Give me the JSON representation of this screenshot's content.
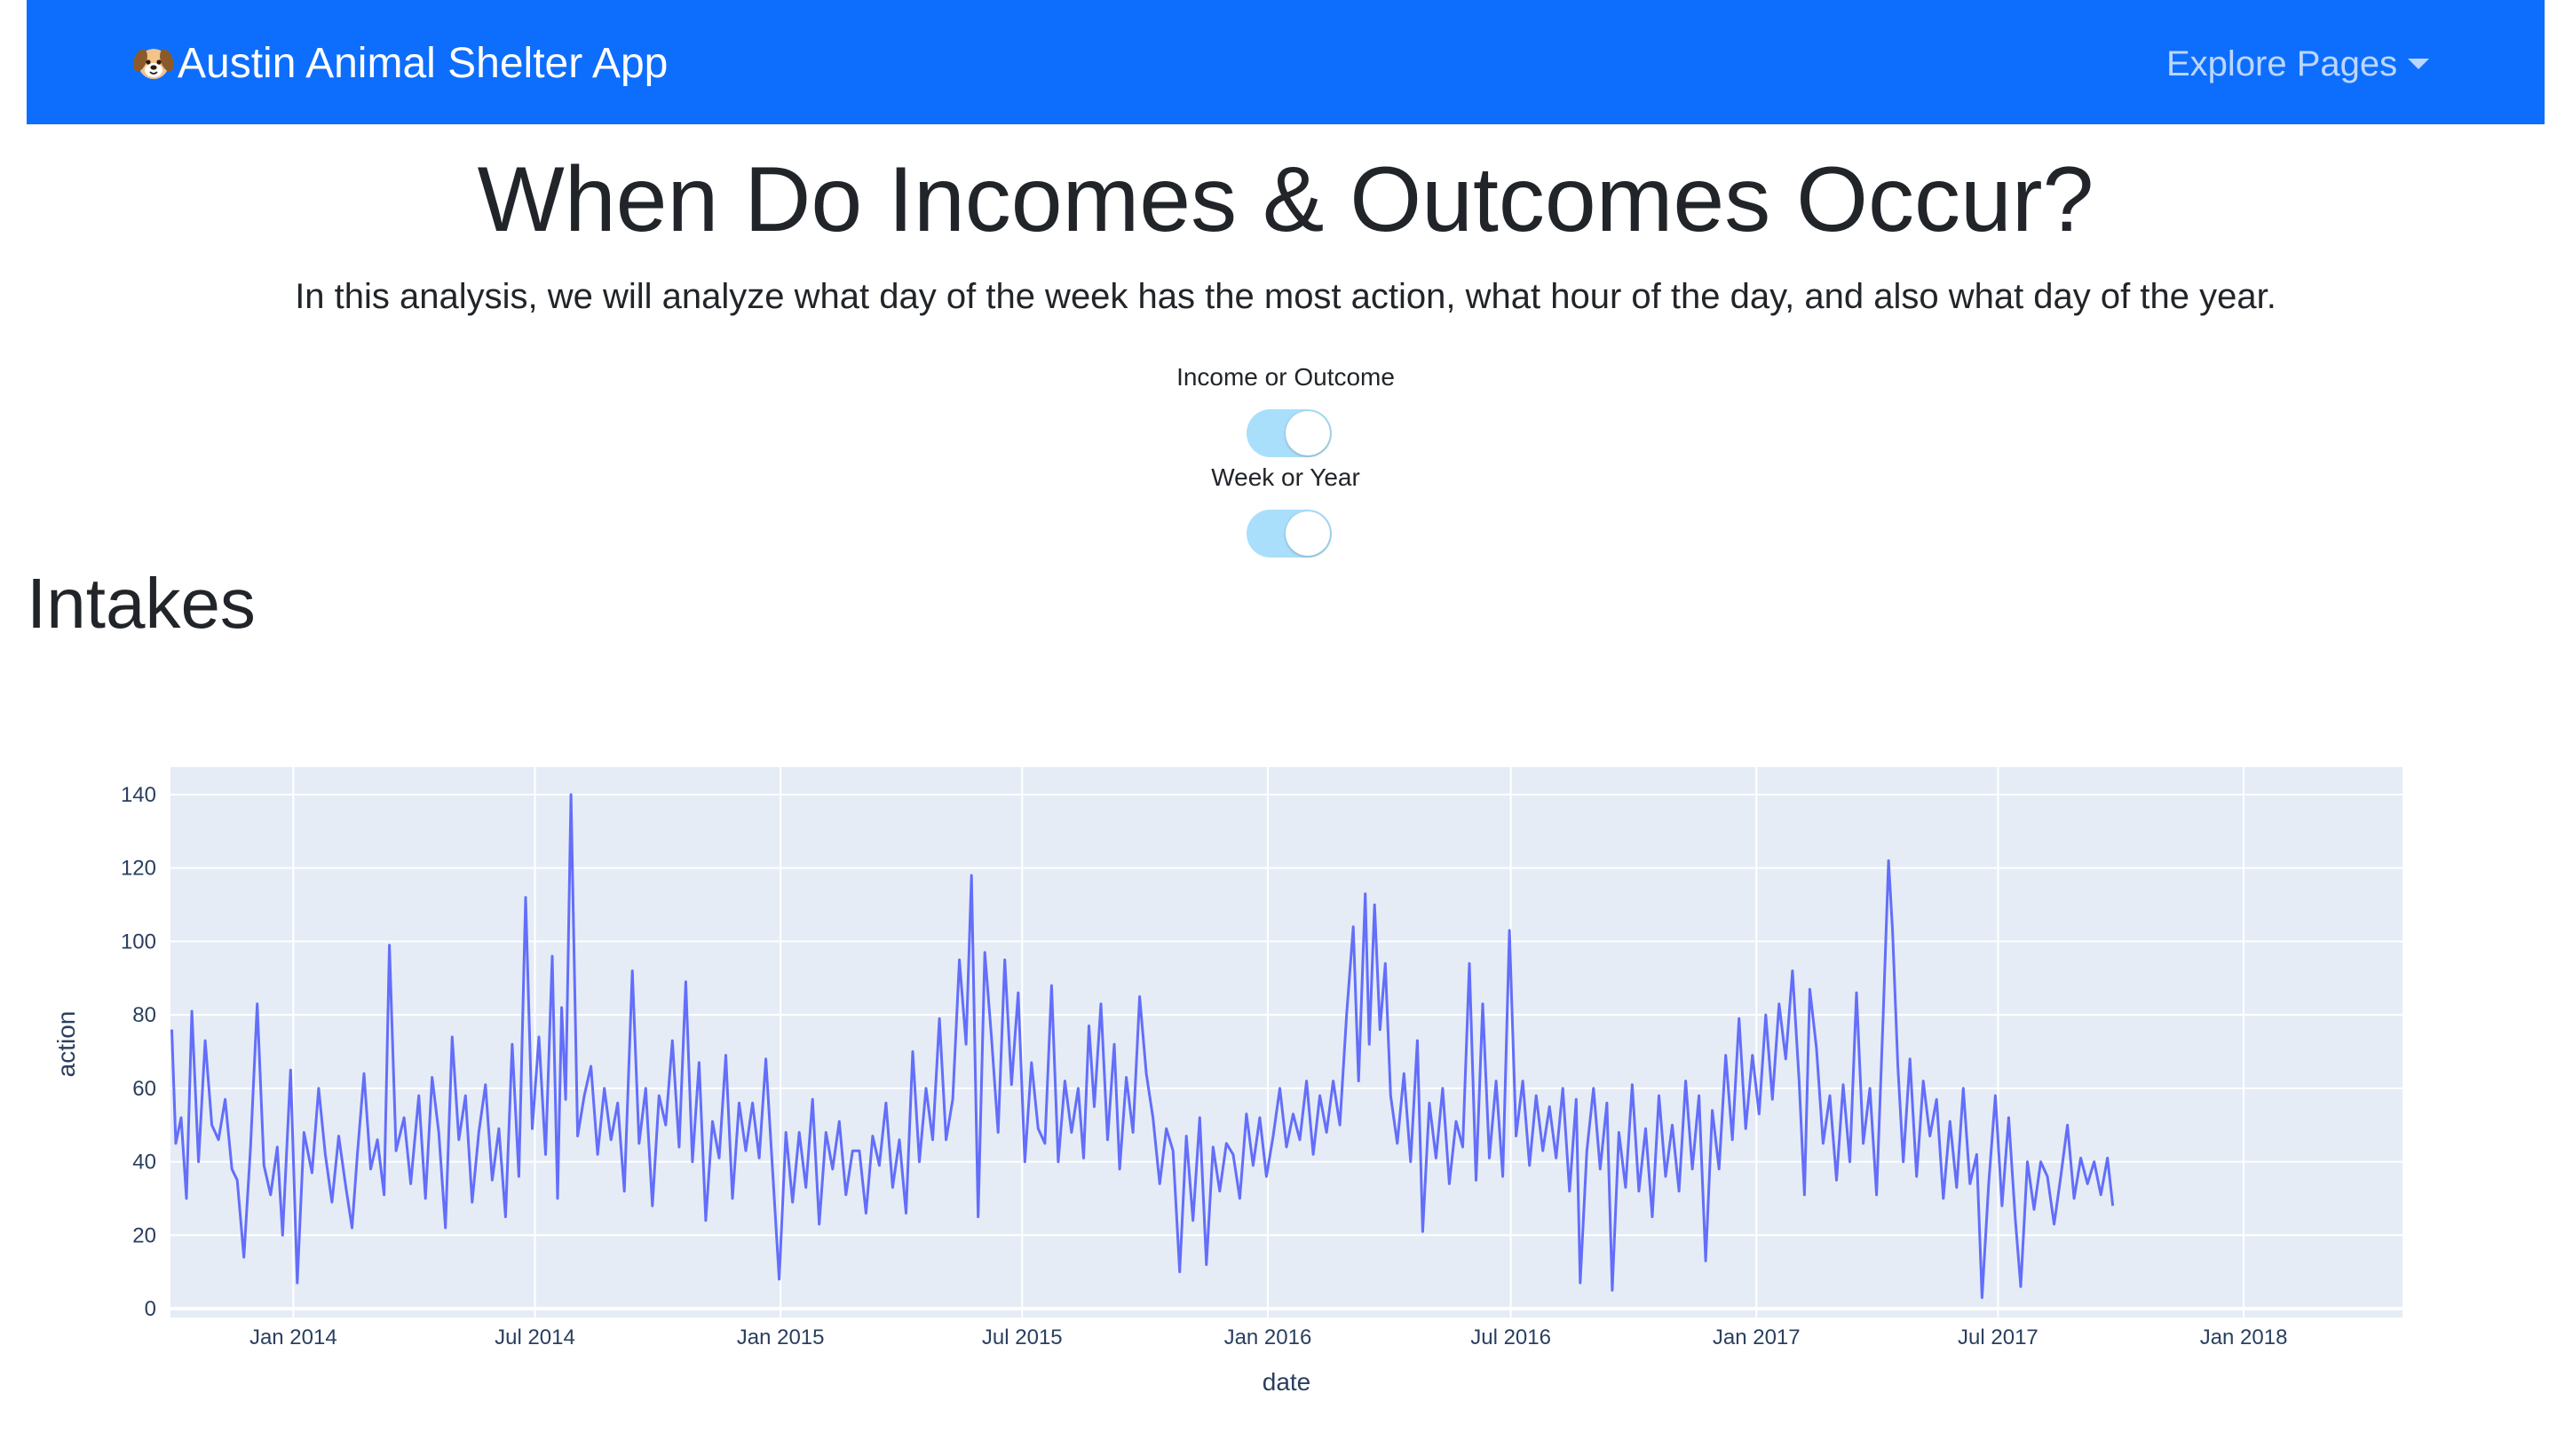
{
  "navbar": {
    "brand_label": "Austin Animal Shelter App",
    "brand_icon": "dog-face-icon",
    "explore_label": "Explore Pages",
    "background_color": "#0d6efd"
  },
  "page": {
    "title": "When Do Incomes & Outcomes Occur?",
    "intro": "In this analysis, we will analyze what day of the week has the most action, what hour of the day, and also what day of the year."
  },
  "controls": {
    "toggle1_label": "Income or Outcome",
    "toggle1_on": true,
    "toggle2_label": "Week or Year",
    "toggle2_on": true,
    "toggle_color": "#a9dffb"
  },
  "section": {
    "title": "Intakes"
  },
  "chart_data": {
    "type": "line",
    "xlabel": "date",
    "ylabel": "action",
    "ylim": [
      0,
      145
    ],
    "x_range": [
      "2013-10-01",
      "2018-04-30"
    ],
    "grid": true,
    "line_color": "#636efa",
    "plot_bgcolor": "#e5ecf6",
    "y_ticks": [
      "0",
      "20",
      "40",
      "60",
      "80",
      "100",
      "120",
      "140"
    ],
    "x_ticks": [
      "Jan 2014",
      "Jul 2014",
      "Jan 2015",
      "Jul 2015",
      "Jan 2016",
      "Jul 2016",
      "Jan 2017",
      "Jul 2017",
      "Jan 2018"
    ],
    "series": [
      {
        "values": [
          [
            1,
            76
          ],
          [
            4,
            45
          ],
          [
            8,
            52
          ],
          [
            12,
            30
          ],
          [
            16,
            81
          ],
          [
            21,
            40
          ],
          [
            26,
            73
          ],
          [
            31,
            50
          ],
          [
            36,
            46
          ],
          [
            41,
            57
          ],
          [
            46,
            38
          ],
          [
            50,
            35
          ],
          [
            55,
            14
          ],
          [
            60,
            44
          ],
          [
            65,
            83
          ],
          [
            70,
            39
          ],
          [
            75,
            31
          ],
          [
            80,
            44
          ],
          [
            84,
            20
          ],
          [
            90,
            65
          ],
          [
            95,
            7
          ],
          [
            100,
            48
          ],
          [
            106,
            37
          ],
          [
            111,
            60
          ],
          [
            116,
            42
          ],
          [
            121,
            29
          ],
          [
            126,
            47
          ],
          [
            131,
            34
          ],
          [
            136,
            22
          ],
          [
            140,
            42
          ],
          [
            145,
            64
          ],
          [
            150,
            38
          ],
          [
            155,
            46
          ],
          [
            160,
            31
          ],
          [
            164,
            99
          ],
          [
            169,
            43
          ],
          [
            175,
            52
          ],
          [
            180,
            34
          ],
          [
            186,
            58
          ],
          [
            191,
            30
          ],
          [
            196,
            63
          ],
          [
            201,
            48
          ],
          [
            206,
            22
          ],
          [
            211,
            74
          ],
          [
            216,
            46
          ],
          [
            221,
            58
          ],
          [
            226,
            29
          ],
          [
            231,
            48
          ],
          [
            236,
            61
          ],
          [
            241,
            35
          ],
          [
            246,
            49
          ],
          [
            251,
            25
          ],
          [
            256,
            72
          ],
          [
            261,
            36
          ],
          [
            266,
            112
          ],
          [
            271,
            49
          ],
          [
            276,
            74
          ],
          [
            281,
            42
          ],
          [
            286,
            96
          ],
          [
            290,
            30
          ],
          [
            293,
            82
          ],
          [
            296,
            57
          ],
          [
            300,
            140
          ],
          [
            305,
            47
          ],
          [
            310,
            58
          ],
          [
            315,
            66
          ],
          [
            320,
            42
          ],
          [
            325,
            60
          ],
          [
            330,
            46
          ],
          [
            335,
            56
          ],
          [
            340,
            32
          ],
          [
            346,
            92
          ],
          [
            351,
            45
          ],
          [
            356,
            60
          ],
          [
            361,
            28
          ],
          [
            366,
            58
          ],
          [
            371,
            50
          ],
          [
            376,
            73
          ],
          [
            381,
            44
          ],
          [
            386,
            89
          ],
          [
            391,
            40
          ],
          [
            396,
            67
          ],
          [
            401,
            24
          ],
          [
            406,
            51
          ],
          [
            411,
            41
          ],
          [
            416,
            69
          ],
          [
            421,
            30
          ],
          [
            426,
            56
          ],
          [
            431,
            43
          ],
          [
            436,
            56
          ],
          [
            441,
            41
          ],
          [
            446,
            68
          ],
          [
            451,
            38
          ],
          [
            456,
            8
          ],
          [
            461,
            48
          ],
          [
            466,
            29
          ],
          [
            471,
            48
          ],
          [
            476,
            33
          ],
          [
            481,
            57
          ],
          [
            486,
            23
          ],
          [
            491,
            48
          ],
          [
            496,
            38
          ],
          [
            501,
            51
          ],
          [
            506,
            31
          ],
          [
            511,
            43
          ],
          [
            516,
            43
          ],
          [
            521,
            26
          ],
          [
            526,
            47
          ],
          [
            531,
            39
          ],
          [
            536,
            56
          ],
          [
            541,
            33
          ],
          [
            546,
            46
          ],
          [
            551,
            26
          ],
          [
            556,
            70
          ],
          [
            561,
            40
          ],
          [
            566,
            60
          ],
          [
            571,
            46
          ],
          [
            576,
            79
          ],
          [
            581,
            46
          ],
          [
            586,
            57
          ],
          [
            591,
            95
          ],
          [
            596,
            72
          ],
          [
            600,
            118
          ],
          [
            605,
            25
          ],
          [
            610,
            97
          ],
          [
            615,
            74
          ],
          [
            620,
            48
          ],
          [
            625,
            95
          ],
          [
            630,
            61
          ],
          [
            635,
            86
          ],
          [
            640,
            40
          ],
          [
            645,
            67
          ],
          [
            650,
            49
          ],
          [
            655,
            45
          ],
          [
            660,
            88
          ],
          [
            665,
            40
          ],
          [
            670,
            62
          ],
          [
            675,
            48
          ],
          [
            680,
            60
          ],
          [
            684,
            41
          ],
          [
            688,
            77
          ],
          [
            692,
            55
          ],
          [
            697,
            83
          ],
          [
            702,
            46
          ],
          [
            707,
            72
          ],
          [
            711,
            38
          ],
          [
            716,
            63
          ],
          [
            721,
            48
          ],
          [
            726,
            85
          ],
          [
            731,
            64
          ],
          [
            736,
            52
          ],
          [
            741,
            34
          ],
          [
            746,
            49
          ],
          [
            751,
            43
          ],
          [
            756,
            10
          ],
          [
            761,
            47
          ],
          [
            766,
            24
          ],
          [
            771,
            52
          ],
          [
            776,
            12
          ],
          [
            781,
            44
          ],
          [
            786,
            32
          ],
          [
            791,
            45
          ],
          [
            796,
            42
          ],
          [
            801,
            30
          ],
          [
            806,
            53
          ],
          [
            811,
            39
          ],
          [
            816,
            52
          ],
          [
            821,
            36
          ],
          [
            826,
            47
          ],
          [
            831,
            60
          ],
          [
            836,
            44
          ],
          [
            841,
            53
          ],
          [
            846,
            46
          ],
          [
            851,
            62
          ],
          [
            856,
            42
          ],
          [
            861,
            58
          ],
          [
            866,
            48
          ],
          [
            871,
            62
          ],
          [
            876,
            50
          ],
          [
            881,
            80
          ],
          [
            886,
            104
          ],
          [
            890,
            62
          ],
          [
            895,
            113
          ],
          [
            898,
            72
          ],
          [
            902,
            110
          ],
          [
            906,
            76
          ],
          [
            910,
            94
          ],
          [
            914,
            58
          ],
          [
            919,
            45
          ],
          [
            924,
            64
          ],
          [
            929,
            40
          ],
          [
            934,
            73
          ],
          [
            938,
            21
          ],
          [
            943,
            56
          ],
          [
            948,
            41
          ],
          [
            953,
            60
          ],
          [
            958,
            34
          ],
          [
            963,
            51
          ],
          [
            968,
            44
          ],
          [
            973,
            94
          ],
          [
            978,
            35
          ],
          [
            983,
            83
          ],
          [
            988,
            41
          ],
          [
            993,
            62
          ],
          [
            998,
            36
          ],
          [
            1003,
            103
          ],
          [
            1008,
            47
          ],
          [
            1013,
            62
          ],
          [
            1018,
            39
          ],
          [
            1023,
            58
          ],
          [
            1028,
            43
          ],
          [
            1033,
            55
          ],
          [
            1038,
            41
          ],
          [
            1043,
            60
          ],
          [
            1048,
            32
          ],
          [
            1053,
            57
          ],
          [
            1056,
            7
          ],
          [
            1061,
            43
          ],
          [
            1066,
            60
          ],
          [
            1071,
            38
          ],
          [
            1076,
            56
          ],
          [
            1080,
            5
          ],
          [
            1085,
            48
          ],
          [
            1090,
            33
          ],
          [
            1095,
            61
          ],
          [
            1100,
            32
          ],
          [
            1105,
            49
          ],
          [
            1110,
            25
          ],
          [
            1115,
            58
          ],
          [
            1120,
            36
          ],
          [
            1125,
            50
          ],
          [
            1130,
            32
          ],
          [
            1135,
            62
          ],
          [
            1140,
            38
          ],
          [
            1145,
            58
          ],
          [
            1150,
            13
          ],
          [
            1155,
            54
          ],
          [
            1160,
            38
          ],
          [
            1165,
            69
          ],
          [
            1170,
            46
          ],
          [
            1175,
            79
          ],
          [
            1180,
            49
          ],
          [
            1185,
            69
          ],
          [
            1190,
            53
          ],
          [
            1195,
            80
          ],
          [
            1200,
            57
          ],
          [
            1205,
            83
          ],
          [
            1210,
            68
          ],
          [
            1215,
            92
          ],
          [
            1220,
            62
          ],
          [
            1224,
            31
          ],
          [
            1228,
            87
          ],
          [
            1233,
            71
          ],
          [
            1238,
            45
          ],
          [
            1243,
            58
          ],
          [
            1248,
            35
          ],
          [
            1253,
            61
          ],
          [
            1258,
            40
          ],
          [
            1263,
            86
          ],
          [
            1268,
            45
          ],
          [
            1273,
            60
          ],
          [
            1278,
            31
          ],
          [
            1283,
            80
          ],
          [
            1287,
            122
          ],
          [
            1290,
            103
          ],
          [
            1294,
            66
          ],
          [
            1298,
            40
          ],
          [
            1303,
            68
          ],
          [
            1308,
            36
          ],
          [
            1313,
            62
          ],
          [
            1318,
            47
          ],
          [
            1323,
            57
          ],
          [
            1328,
            30
          ],
          [
            1333,
            51
          ],
          [
            1338,
            33
          ],
          [
            1343,
            60
          ],
          [
            1348,
            34
          ],
          [
            1353,
            42
          ],
          [
            1357,
            3
          ],
          [
            1362,
            34
          ],
          [
            1367,
            58
          ],
          [
            1372,
            28
          ],
          [
            1377,
            52
          ],
          [
            1382,
            24
          ],
          [
            1386,
            6
          ],
          [
            1391,
            40
          ],
          [
            1396,
            27
          ],
          [
            1401,
            40
          ],
          [
            1406,
            36
          ],
          [
            1411,
            23
          ],
          [
            1416,
            36
          ],
          [
            1421,
            50
          ],
          [
            1426,
            30
          ],
          [
            1431,
            41
          ],
          [
            1436,
            34
          ],
          [
            1441,
            40
          ],
          [
            1446,
            31
          ],
          [
            1451,
            41
          ],
          [
            1455,
            28
          ]
        ]
      }
    ]
  }
}
